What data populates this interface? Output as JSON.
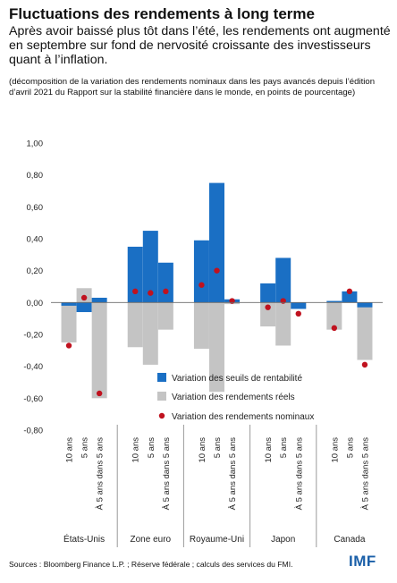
{
  "title": "Fluctuations des rendements à long terme",
  "subtitle": "Après avoir baissé plus tôt dans l’été, les rendements ont augmenté en septembre sur fond de nervosité croissante des investisseurs quant à l’inflation.",
  "note": "(décomposition de la variation des rendements nominaux dans les pays avancés depuis l’édition d’avril 2021 du Rapport sur la stabilité financière dans le monde, en points de pourcentage)",
  "source": "Sources : Bloomberg Finance L.P. ; Réserve fédérale ; calculs des services du FMI.",
  "logo": "IMF",
  "colors": {
    "breakeven": "#1a6fc4",
    "real": "#c4c4c4",
    "nominal": "#c0121f",
    "grid": "#9a9a9a"
  },
  "chart_data": {
    "type": "bar",
    "title": "Fluctuations des rendements à long terme",
    "ylim": [
      -0.8,
      1.0
    ],
    "yticks": [
      "1,00",
      "0,80",
      "0,60",
      "0,40",
      "0,20",
      "0,00",
      "-0,20",
      "-0,40",
      "-0,60",
      "-0,80"
    ],
    "ytick_values": [
      1.0,
      0.8,
      0.6,
      0.4,
      0.2,
      0.0,
      -0.2,
      -0.4,
      -0.6,
      -0.8
    ],
    "groups": [
      "États-Unis",
      "Zone euro",
      "Royaume-Uni",
      "Japon",
      "Canada"
    ],
    "maturities": [
      "10 ans",
      "5 ans",
      "À 5 ans dans 5 ans"
    ],
    "series": [
      {
        "name": "Variation des seuils de rentabilité",
        "kind": "bar",
        "values": [
          [
            -0.02,
            -0.06,
            0.03
          ],
          [
            0.35,
            0.45,
            0.25
          ],
          [
            0.39,
            0.75,
            0.02
          ],
          [
            0.12,
            0.28,
            -0.04
          ],
          [
            0.01,
            0.07,
            -0.03
          ]
        ]
      },
      {
        "name": "Variation des rendements réels",
        "kind": "bar",
        "values": [
          [
            -0.25,
            0.09,
            -0.6
          ],
          [
            -0.28,
            -0.39,
            -0.17
          ],
          [
            -0.29,
            -0.56,
            -0.01
          ],
          [
            -0.15,
            -0.27,
            -0.04
          ],
          [
            -0.17,
            0.0,
            -0.36
          ]
        ]
      },
      {
        "name": "Variation des rendements nominaux",
        "kind": "point",
        "values": [
          [
            -0.27,
            0.03,
            -0.57
          ],
          [
            0.07,
            0.06,
            0.07
          ],
          [
            0.11,
            0.2,
            0.01
          ],
          [
            -0.03,
            0.01,
            -0.07
          ],
          [
            -0.16,
            0.07,
            -0.39
          ]
        ]
      }
    ],
    "legend_position": "lower-right, inside plot"
  }
}
